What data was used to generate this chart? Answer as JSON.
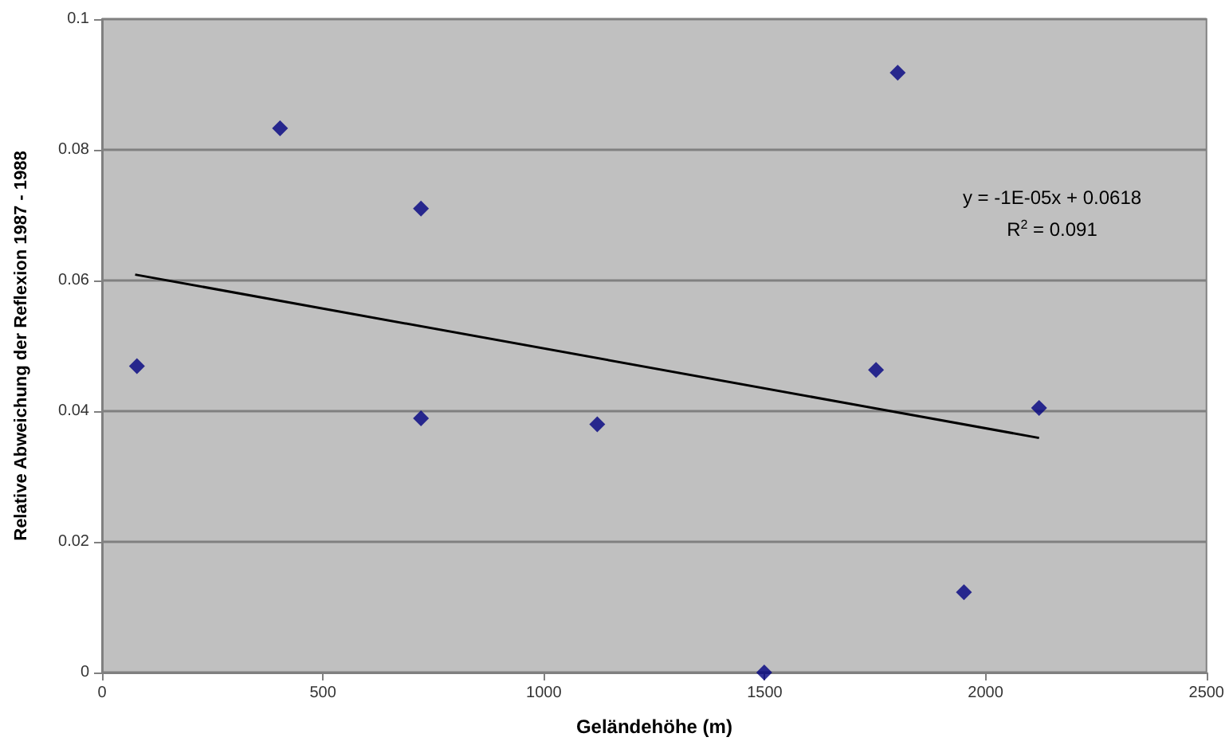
{
  "chart_data": {
    "type": "scatter",
    "xlabel": "Geländehöhe (m)",
    "ylabel": "Relative Abweichung der Reflexion 1987 - 1988",
    "xlim": [
      0,
      2500
    ],
    "xticks": [
      0,
      500,
      1000,
      1500,
      2000,
      2500
    ],
    "ylim": [
      0,
      0.1
    ],
    "yticks": [
      0,
      0.02,
      0.04,
      0.06,
      0.08,
      0.1
    ],
    "grid": "y",
    "marker": "diamond",
    "annotations": [
      "y = -1E-05x + 0.0618",
      "R$^{2}$ = 0.091"
    ],
    "series": [
      {
        "color": "#000080",
        "x": [
          79,
          403,
          722,
          722,
          1121,
          1499,
          1752,
          1801,
          1951,
          2121
        ],
        "values": [
          0.0469,
          0.0833,
          0.071,
          0.0389,
          0.038,
          0,
          0.0463,
          0.0918,
          0.0123,
          0.0405
        ]
      },
      {
        "type": "line",
        "color": "#000000",
        "marker": "none",
        "line_style": "solid",
        "x": [
          75,
          2121
        ],
        "values": [
          0.0609,
          0.0359
        ]
      }
    ]
  }
}
